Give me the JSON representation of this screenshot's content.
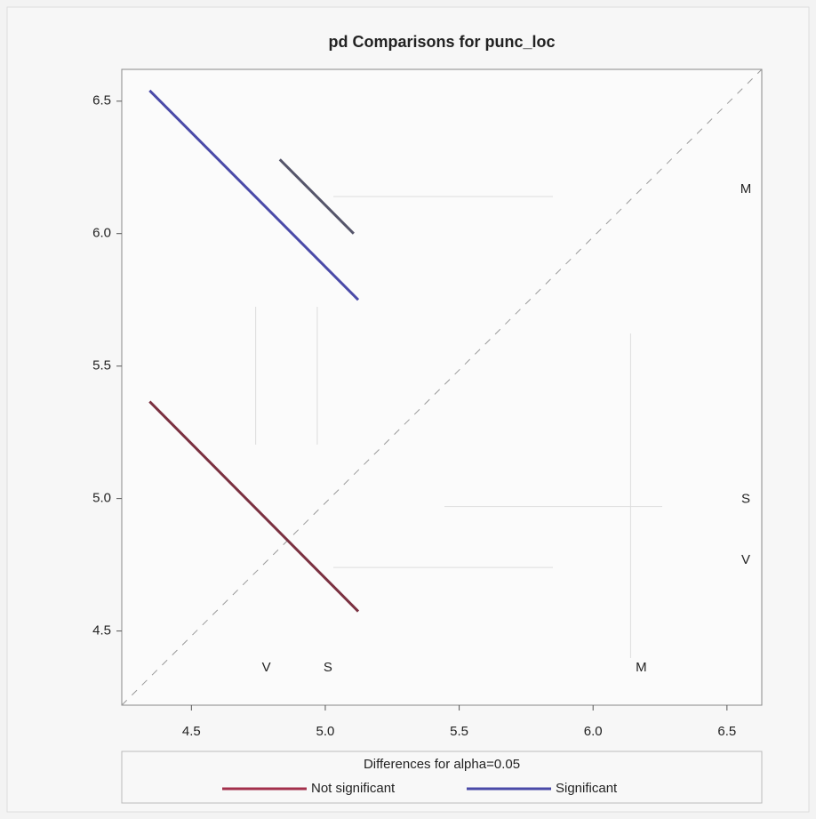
{
  "chart_data": {
    "type": "diffogram",
    "title": "pd Comparisons for punc_loc",
    "xlim": [
      4.24,
      6.63
    ],
    "ylim": [
      4.22,
      6.62
    ],
    "xticks": [
      4.5,
      {
        "value": 5.0,
        "label": "5.0"
      },
      5.5,
      {
        "value": 6.0,
        "label": "6.0"
      },
      6.5
    ],
    "yticks": [
      4.5,
      {
        "value": 5.0,
        "label": "5.0"
      },
      5.5,
      {
        "value": 6.0,
        "label": "6.0"
      },
      6.5
    ],
    "levels": {
      "categories": [
        "M",
        "S",
        "V"
      ],
      "values": [
        6.14,
        4.97,
        4.74
      ]
    },
    "segments": [
      {
        "x": [
          4.344,
          5.123
        ],
        "y": [
          6.54,
          5.75
        ],
        "color": "#4a4aa8"
      },
      {
        "x": [
          4.83,
          5.106
        ],
        "y": [
          6.28,
          6.0
        ],
        "color": "#55556a"
      },
      {
        "x": [
          4.344,
          5.123
        ],
        "y": [
          5.366,
          4.574
        ],
        "color": "#7a3040"
      }
    ],
    "legend_title": "Differences for alpha=0.05",
    "series": [
      {
        "name": "Not significant",
        "color": "#a3304c"
      },
      {
        "name": "Significant",
        "color": "#4a4aa8"
      }
    ]
  }
}
